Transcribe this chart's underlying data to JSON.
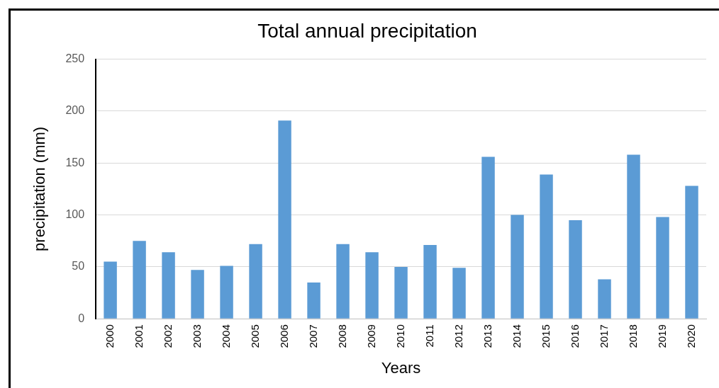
{
  "chart_data": {
    "type": "bar",
    "title": "Total annual precipitation",
    "xlabel": "Years",
    "ylabel": "precipitation (mm)",
    "categories": [
      "2000",
      "2001",
      "2002",
      "2003",
      "2004",
      "2005",
      "2006",
      "2007",
      "2008",
      "2009",
      "2010",
      "2011",
      "2012",
      "2013",
      "2014",
      "2015",
      "2016",
      "2017",
      "2018",
      "2019",
      "2020"
    ],
    "values": [
      55,
      75,
      64,
      47,
      51,
      72,
      191,
      35,
      72,
      64,
      50,
      71,
      49,
      156,
      100,
      139,
      95,
      38,
      158,
      98,
      128
    ],
    "color": "#5b9bd5",
    "ylim": [
      0,
      250
    ],
    "yticks": [
      0,
      50,
      100,
      150,
      200,
      250
    ],
    "grid": "y",
    "legend": false
  }
}
